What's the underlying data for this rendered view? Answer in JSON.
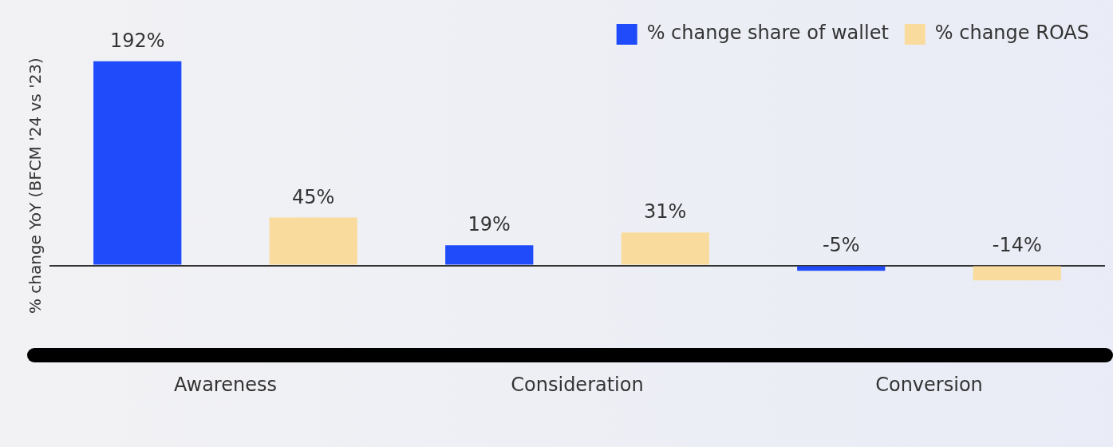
{
  "chart_data": {
    "type": "bar",
    "ylabel": "% change YoY (BFCM '24 vs '23)",
    "categories": [
      "Awareness",
      "Consideration",
      "Conversion"
    ],
    "series": [
      {
        "name": "% change share of wallet",
        "color": "#1f4bfb",
        "values": [
          192,
          19,
          -5
        ],
        "value_labels": [
          "192%",
          "19%",
          "-5%"
        ]
      },
      {
        "name": "% change ROAS",
        "color": "#f9dc9d",
        "values": [
          45,
          31,
          -14
        ],
        "value_labels": [
          "45%",
          "31%",
          "-14%"
        ]
      }
    ],
    "legend": "top right",
    "tick_labels": "x"
  }
}
